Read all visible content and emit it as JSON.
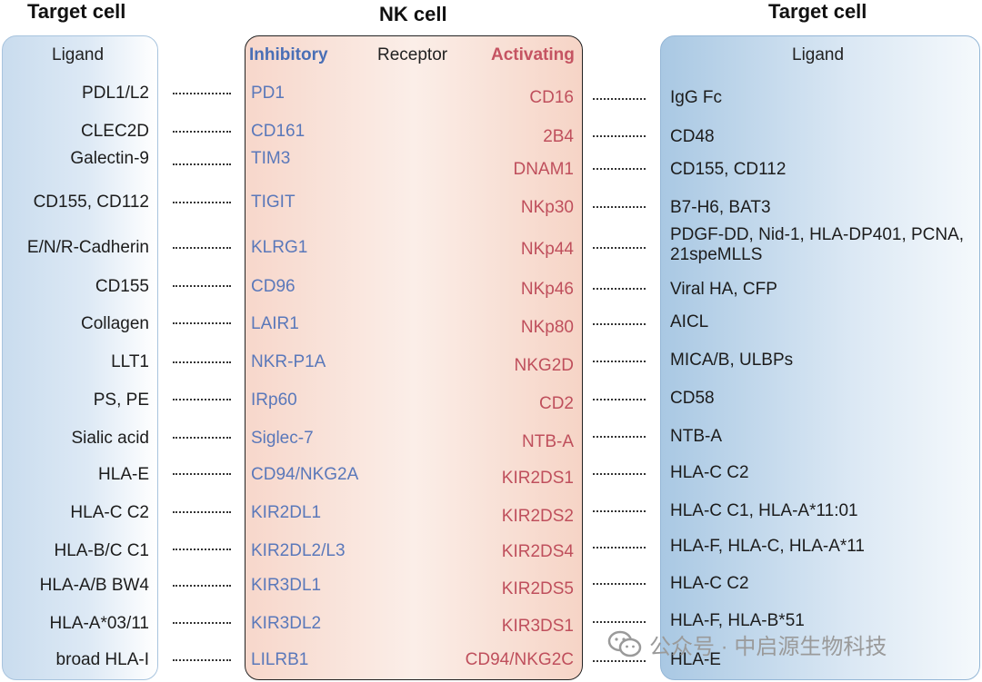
{
  "headers": {
    "left": "Target cell",
    "middle": "NK cell",
    "right": "Target cell"
  },
  "columns": {
    "left_ligand": "Ligand",
    "inhibitory": "Inhibitory",
    "receptor": "Receptor",
    "activating": "Activating",
    "right_ligand": "Ligand"
  },
  "inhibitory_pairs": [
    {
      "ligand": "PDL1/L2",
      "receptor": "PD1"
    },
    {
      "ligand": "CLEC2D",
      "receptor": "CD161"
    },
    {
      "ligand": "Galectin-9",
      "receptor": "TIM3"
    },
    {
      "ligand": "CD155, CD112",
      "receptor": "TIGIT"
    },
    {
      "ligand": "E/N/R-Cadherin",
      "receptor": "KLRG1"
    },
    {
      "ligand": "CD155",
      "receptor": "CD96"
    },
    {
      "ligand": "Collagen",
      "receptor": "LAIR1"
    },
    {
      "ligand": "LLT1",
      "receptor": "NKR-P1A"
    },
    {
      "ligand": "PS, PE",
      "receptor": "IRp60"
    },
    {
      "ligand": "Sialic acid",
      "receptor": "Siglec-7"
    },
    {
      "ligand": "HLA-E",
      "receptor": "CD94/NKG2A"
    },
    {
      "ligand": "HLA-C C2",
      "receptor": "KIR2DL1"
    },
    {
      "ligand": "HLA-B/C C1",
      "receptor": "KIR2DL2/L3"
    },
    {
      "ligand": "HLA-A/B BW4",
      "receptor": "KIR3DL1"
    },
    {
      "ligand": "HLA-A*03/11",
      "receptor": "KIR3DL2"
    },
    {
      "ligand": "broad HLA-I",
      "receptor": "LILRB1"
    }
  ],
  "activating_pairs": [
    {
      "receptor": "CD16",
      "ligand": "IgG Fc"
    },
    {
      "receptor": "2B4",
      "ligand": "CD48"
    },
    {
      "receptor": "DNAM1",
      "ligand": "CD155, CD112"
    },
    {
      "receptor": "NKp30",
      "ligand": "B7-H6, BAT3"
    },
    {
      "receptor": "NKp44",
      "ligand": "PDGF-DD, Nid-1, HLA-DP401, PCNA,",
      "ligand_line2": "21speMLLS"
    },
    {
      "receptor": "NKp46",
      "ligand": "Viral HA, CFP"
    },
    {
      "receptor": "NKp80",
      "ligand": "AICL"
    },
    {
      "receptor": "NKG2D",
      "ligand": "MICA/B, ULBPs"
    },
    {
      "receptor": "CD2",
      "ligand": "CD58"
    },
    {
      "receptor": "NTB-A",
      "ligand": "NTB-A"
    },
    {
      "receptor": "KIR2DS1",
      "ligand": "HLA-C C2"
    },
    {
      "receptor": "KIR2DS2",
      "ligand": "HLA-C C1, HLA-A*11:01"
    },
    {
      "receptor": "KIR2DS4",
      "ligand": "HLA-F, HLA-C, HLA-A*11"
    },
    {
      "receptor": "KIR2DS5",
      "ligand": "HLA-C C2"
    },
    {
      "receptor": "KIR3DS1",
      "ligand": "HLA-F, HLA-B*51"
    },
    {
      "receptor": "CD94/NKG2C",
      "ligand": "HLA-E"
    }
  ],
  "watermark": {
    "text": "公众号 · 中启源生物科技",
    "icon": "wechat-icon"
  },
  "colors": {
    "inhibitory": "#5a78ba",
    "activating": "#bf4f5c",
    "nk_panel": "#f7d7cb",
    "target_panel": "#c9dcee"
  }
}
